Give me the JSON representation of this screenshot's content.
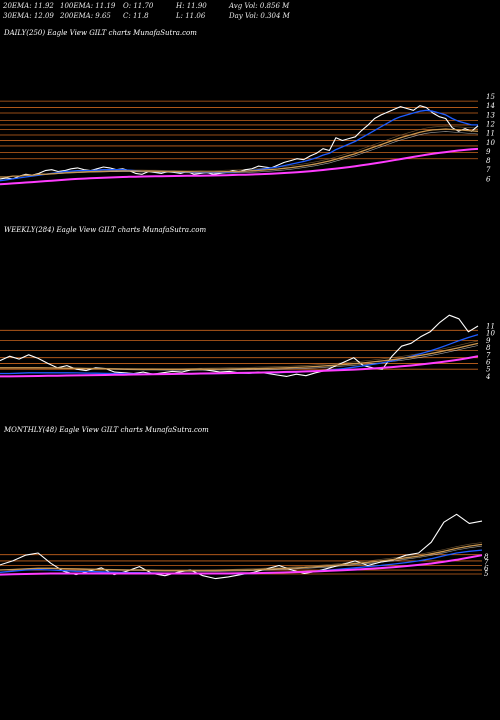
{
  "header": {
    "row1": [
      "20EMA: 11.92",
      "100EMA: 11.19",
      "O: 11.70",
      "H: 11.90",
      "Avg Vol: 0.856  M"
    ],
    "row2": [
      "30EMA: 12.09",
      "200EMA: 9.65",
      "C: 11.8",
      "L: 11.06",
      "Day Vol: 0.304  M"
    ]
  },
  "colors": {
    "background": "#000000",
    "price": "#ffffff",
    "ema_short": "#1e5cff",
    "ema_long": "#ff3cff",
    "resistance": "#c8641e",
    "ma_mid": "#c89650"
  },
  "chart_data": [
    {
      "type": "line",
      "title": "DAILY(250) Eagle  View  GILT charts MunafaSutra.com",
      "y_ticks": [
        "15",
        "14",
        "13",
        "12",
        "11",
        "10",
        "9",
        "8",
        "7",
        "6"
      ],
      "ylim": [
        5,
        15.5
      ],
      "horizontal_levels": [
        14.5,
        13.8,
        13.2,
        12.4,
        11.9,
        11.4,
        10.8,
        10.2,
        9.6,
        8.9,
        8.2
      ],
      "series": [
        {
          "color": "#ffffff",
          "values": [
            6.0,
            6.1,
            6.0,
            6.3,
            6.5,
            6.4,
            6.6,
            6.9,
            7.0,
            6.8,
            6.9,
            7.1,
            7.2,
            7.0,
            6.9,
            7.1,
            7.3,
            7.2,
            7.0,
            7.1,
            6.9,
            6.6,
            6.5,
            6.8,
            6.7,
            6.6,
            6.8,
            6.7,
            6.6,
            6.8,
            6.5,
            6.6,
            6.7,
            6.5,
            6.6,
            6.7,
            6.9,
            6.8,
            7.0,
            7.1,
            7.4,
            7.3,
            7.2,
            7.5,
            7.8,
            8.0,
            8.2,
            8.1,
            8.5,
            8.8,
            9.3,
            9.1,
            10.5,
            10.2,
            10.4,
            10.6,
            11.3,
            11.9,
            12.6,
            13.0,
            13.3,
            13.6,
            13.9,
            13.7,
            13.5,
            14.0,
            13.8,
            13.2,
            12.8,
            12.6,
            11.6,
            11.2,
            11.5,
            11.2,
            11.8
          ]
        },
        {
          "color": "#1e5cff",
          "values": [
            5.8,
            5.9,
            6.0,
            6.1,
            6.2,
            6.3,
            6.4,
            6.5,
            6.6,
            6.7,
            6.8,
            6.85,
            6.9,
            6.9,
            6.9,
            6.95,
            7.0,
            7.0,
            7.0,
            7.0,
            6.95,
            6.9,
            6.85,
            6.85,
            6.8,
            6.8,
            6.8,
            6.8,
            6.75,
            6.75,
            6.7,
            6.7,
            6.7,
            6.7,
            6.7,
            6.7,
            6.75,
            6.8,
            6.85,
            6.9,
            7.0,
            7.1,
            7.2,
            7.3,
            7.45,
            7.6,
            7.75,
            7.9,
            8.1,
            8.3,
            8.6,
            8.8,
            9.2,
            9.5,
            9.8,
            10.1,
            10.5,
            10.9,
            11.3,
            11.7,
            12.1,
            12.5,
            12.8,
            13.0,
            13.2,
            13.4,
            13.5,
            13.4,
            13.2,
            13.0,
            12.6,
            12.3,
            12.1,
            11.9,
            11.9
          ]
        },
        {
          "color": "#c89650",
          "values": [
            6.2,
            6.2,
            6.3,
            6.3,
            6.4,
            6.4,
            6.5,
            6.5,
            6.55,
            6.6,
            6.65,
            6.7,
            6.72,
            6.75,
            6.78,
            6.8,
            6.82,
            6.85,
            6.86,
            6.87,
            6.87,
            6.86,
            6.85,
            6.84,
            6.83,
            6.82,
            6.8,
            6.8,
            6.79,
            6.78,
            6.77,
            6.76,
            6.76,
            6.76,
            6.77,
            6.78,
            6.8,
            6.82,
            6.85,
            6.88,
            6.92,
            6.97,
            7.02,
            7.08,
            7.15,
            7.23,
            7.32,
            7.42,
            7.53,
            7.65,
            7.8,
            7.95,
            8.15,
            8.35,
            8.55,
            8.75,
            9.0,
            9.25,
            9.5,
            9.75,
            10.0,
            10.25,
            10.5,
            10.7,
            10.9,
            11.1,
            11.25,
            11.35,
            11.4,
            11.45,
            11.4,
            11.35,
            11.3,
            11.25,
            11.2
          ]
        },
        {
          "color": "#ff3cff",
          "values": [
            5.4,
            5.45,
            5.5,
            5.55,
            5.6,
            5.65,
            5.7,
            5.75,
            5.8,
            5.85,
            5.9,
            5.95,
            6.0,
            6.03,
            6.06,
            6.09,
            6.12,
            6.15,
            6.18,
            6.2,
            6.22,
            6.24,
            6.26,
            6.27,
            6.28,
            6.29,
            6.3,
            6.31,
            6.32,
            6.33,
            6.34,
            6.35,
            6.36,
            6.37,
            6.38,
            6.4,
            6.42,
            6.44,
            6.46,
            6.48,
            6.5,
            6.53,
            6.56,
            6.6,
            6.64,
            6.68,
            6.73,
            6.78,
            6.84,
            6.9,
            6.97,
            7.04,
            7.12,
            7.2,
            7.29,
            7.38,
            7.48,
            7.58,
            7.69,
            7.8,
            7.92,
            8.04,
            8.16,
            8.28,
            8.4,
            8.52,
            8.63,
            8.74,
            8.84,
            8.93,
            9.02,
            9.1,
            9.17,
            9.23,
            9.28
          ]
        }
      ]
    },
    {
      "type": "line",
      "title": "WEEKLY(284) Eagle  View  GILT charts MunafaSutra.com",
      "y_ticks": [
        "11",
        "10",
        "9",
        "8",
        "7",
        "6",
        "5",
        "4"
      ],
      "ylim": [
        3.5,
        13.5
      ],
      "horizontal_levels": [
        10.4,
        9.0,
        7.6,
        6.6,
        5.8,
        5.0
      ],
      "series": [
        {
          "color": "#ffffff",
          "values": [
            6.2,
            6.8,
            6.4,
            7.0,
            6.5,
            5.8,
            5.2,
            5.5,
            5.0,
            4.8,
            5.2,
            5.1,
            4.6,
            4.5,
            4.4,
            4.6,
            4.3,
            4.5,
            4.7,
            4.6,
            4.9,
            5.0,
            4.8,
            4.6,
            4.7,
            4.5,
            4.4,
            4.6,
            4.4,
            4.2,
            4.0,
            4.3,
            4.1,
            4.5,
            4.8,
            5.4,
            6.0,
            6.6,
            5.5,
            5.2,
            5.0,
            6.8,
            8.2,
            8.6,
            9.5,
            10.2,
            11.5,
            12.5,
            12.0,
            10.2,
            11.0
          ]
        },
        {
          "color": "#1e5cff",
          "values": [
            4.4,
            4.4,
            4.45,
            4.5,
            4.5,
            4.5,
            4.5,
            4.5,
            4.48,
            4.46,
            4.44,
            4.42,
            4.4,
            4.38,
            4.36,
            4.34,
            4.33,
            4.32,
            4.32,
            4.33,
            4.34,
            4.36,
            4.38,
            4.4,
            4.42,
            4.44,
            4.46,
            4.48,
            4.5,
            4.52,
            4.55,
            4.6,
            4.66,
            4.74,
            4.84,
            4.96,
            5.1,
            5.28,
            5.46,
            5.66,
            5.88,
            6.14,
            6.44,
            6.78,
            7.14,
            7.54,
            7.98,
            8.46,
            8.96,
            9.4,
            9.8
          ]
        },
        {
          "color": "#c89650",
          "values": [
            5.2,
            5.2,
            5.2,
            5.2,
            5.2,
            5.18,
            5.16,
            5.14,
            5.12,
            5.1,
            5.08,
            5.06,
            5.04,
            5.02,
            5.0,
            4.99,
            4.98,
            4.97,
            4.97,
            4.97,
            4.98,
            4.99,
            5.0,
            5.02,
            5.04,
            5.06,
            5.08,
            5.1,
            5.13,
            5.16,
            5.2,
            5.25,
            5.31,
            5.38,
            5.46,
            5.55,
            5.65,
            5.76,
            5.88,
            6.01,
            6.15,
            6.31,
            6.49,
            6.69,
            6.91,
            7.15,
            7.41,
            7.69,
            7.99,
            8.29,
            8.59
          ]
        },
        {
          "color": "#ff3cff",
          "values": [
            4.0,
            4.0,
            4.02,
            4.04,
            4.06,
            4.08,
            4.1,
            4.12,
            4.14,
            4.16,
            4.18,
            4.2,
            4.22,
            4.24,
            4.26,
            4.28,
            4.3,
            4.32,
            4.34,
            4.36,
            4.38,
            4.4,
            4.42,
            4.44,
            4.46,
            4.48,
            4.5,
            4.53,
            4.56,
            4.59,
            4.62,
            4.65,
            4.69,
            4.73,
            4.78,
            4.83,
            4.89,
            4.95,
            5.02,
            5.1,
            5.19,
            5.29,
            5.4,
            5.52,
            5.65,
            5.8,
            5.96,
            6.14,
            6.34,
            6.56,
            6.8
          ]
        }
      ]
    },
    {
      "type": "line",
      "title": "MONTHLY(48) Eagle  View  GILT charts MunafaSutra.com",
      "y_ticks": [
        "8",
        "7",
        "6",
        "5"
      ],
      "ylim": [
        3.5,
        16.5
      ],
      "horizontal_levels": [
        8.3,
        7.2,
        6.4,
        5.6,
        4.9
      ],
      "series": [
        {
          "color": "#ffffff",
          "values": [
            6.5,
            7.2,
            8.2,
            8.6,
            6.8,
            5.4,
            4.8,
            5.4,
            6.0,
            4.8,
            5.4,
            6.2,
            5.0,
            4.6,
            5.2,
            5.6,
            4.6,
            4.1,
            4.4,
            4.8,
            5.2,
            5.8,
            6.4,
            5.6,
            5.0,
            5.4,
            6.0,
            6.6,
            7.2,
            6.4,
            7.0,
            7.4,
            8.2,
            8.6,
            10.5,
            14.0,
            15.4,
            13.8,
            14.2
          ]
        },
        {
          "color": "#1e5cff",
          "values": [
            5.2,
            5.4,
            5.6,
            5.7,
            5.6,
            5.5,
            5.4,
            5.35,
            5.3,
            5.2,
            5.15,
            5.15,
            5.1,
            5.05,
            5.05,
            5.05,
            5.0,
            4.95,
            4.95,
            4.95,
            5.0,
            5.05,
            5.15,
            5.25,
            5.35,
            5.45,
            5.6,
            5.8,
            6.0,
            6.2,
            6.4,
            6.65,
            6.9,
            7.2,
            7.6,
            8.1,
            8.6,
            8.9,
            9.1
          ]
        },
        {
          "color": "#c89650",
          "values": [
            5.6,
            5.7,
            5.8,
            5.9,
            5.9,
            5.85,
            5.8,
            5.75,
            5.7,
            5.65,
            5.6,
            5.6,
            5.55,
            5.5,
            5.5,
            5.5,
            5.5,
            5.5,
            5.55,
            5.6,
            5.65,
            5.75,
            5.85,
            5.95,
            6.05,
            6.2,
            6.35,
            6.55,
            6.75,
            6.95,
            7.2,
            7.45,
            7.75,
            8.05,
            8.45,
            8.9,
            9.4,
            9.8,
            10.1
          ]
        },
        {
          "color": "#ff3cff",
          "values": [
            4.8,
            4.85,
            4.9,
            4.95,
            5.0,
            5.0,
            5.0,
            5.0,
            5.0,
            5.0,
            5.0,
            5.0,
            5.0,
            5.0,
            5.0,
            5.0,
            5.0,
            5.0,
            5.0,
            5.02,
            5.05,
            5.1,
            5.15,
            5.2,
            5.28,
            5.36,
            5.46,
            5.56,
            5.68,
            5.8,
            5.95,
            6.1,
            6.3,
            6.5,
            6.75,
            7.05,
            7.4,
            7.8,
            8.2
          ]
        }
      ]
    }
  ]
}
